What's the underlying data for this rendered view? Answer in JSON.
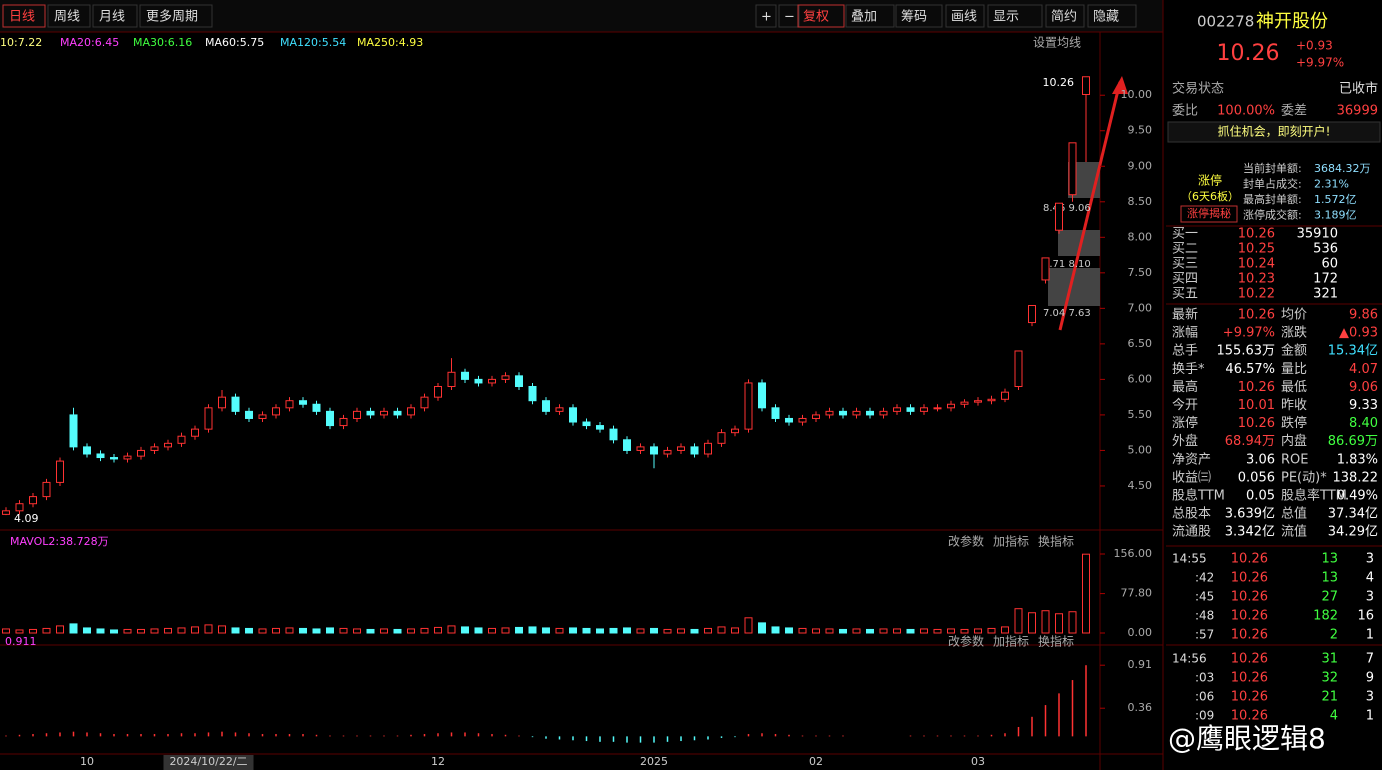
{
  "toolbar": {
    "periods": [
      "日线",
      "周线",
      "月线",
      "更多周期"
    ],
    "tools": [
      "+",
      "−",
      "复权",
      "叠加",
      "筹码",
      "画线",
      "显示",
      "简约",
      "隐藏"
    ]
  },
  "ma_legend": [
    "10:7.22",
    "MA20:6.45",
    "MA30:6.16",
    "MA60:5.75",
    "MA120:5.54",
    "MA250:4.93"
  ],
  "ma_setting": "设置均线",
  "panel_buttons": [
    "改参数",
    "加指标",
    "换指标"
  ],
  "chip_labels": [
    "8.46 9.06",
    "7.71 8.10",
    "7.04 7.63"
  ],
  "chart_data": [
    {
      "type": "candlestick",
      "categories": [
        null,
        null,
        null,
        null,
        null,
        null,
        "10",
        null,
        null,
        null,
        null,
        null,
        null,
        null,
        null,
        "2024/10/22/二",
        null,
        null,
        null,
        null,
        null,
        null,
        null,
        null,
        null,
        null,
        null,
        null,
        null,
        null,
        null,
        null,
        "12",
        null,
        null,
        null,
        null,
        null,
        null,
        null,
        null,
        null,
        null,
        null,
        null,
        null,
        null,
        null,
        "2025",
        null,
        null,
        null,
        null,
        null,
        null,
        null,
        null,
        null,
        null,
        null,
        "02",
        null,
        null,
        null,
        null,
        null,
        null,
        null,
        null,
        null,
        null,
        null,
        "03",
        null,
        null,
        null,
        null,
        null,
        null,
        null,
        null
      ],
      "open": [
        4.1,
        4.15,
        4.25,
        4.35,
        4.55,
        5.5,
        5.05,
        4.95,
        4.9,
        4.88,
        4.92,
        5.0,
        5.05,
        5.1,
        5.2,
        5.3,
        5.6,
        5.75,
        5.55,
        5.45,
        5.5,
        5.6,
        5.7,
        5.65,
        5.55,
        5.35,
        5.45,
        5.55,
        5.5,
        5.55,
        5.5,
        5.6,
        5.75,
        5.9,
        6.1,
        6.0,
        5.95,
        6.0,
        6.05,
        5.9,
        5.7,
        5.55,
        5.6,
        5.4,
        5.35,
        5.3,
        5.15,
        5.0,
        5.05,
        4.95,
        5.0,
        5.05,
        4.95,
        5.1,
        5.25,
        5.3,
        5.95,
        5.6,
        5.45,
        5.4,
        5.45,
        5.5,
        5.55,
        5.5,
        5.55,
        5.5,
        5.55,
        5.6,
        5.55,
        5.6,
        5.6,
        5.65,
        5.68,
        5.7,
        5.72,
        5.9,
        6.8,
        7.4,
        8.1,
        8.6,
        10.01
      ],
      "high": [
        4.2,
        4.3,
        4.4,
        4.6,
        4.9,
        5.6,
        5.1,
        5.0,
        4.95,
        4.97,
        5.05,
        5.1,
        5.15,
        5.25,
        5.35,
        5.65,
        5.85,
        5.8,
        5.6,
        5.55,
        5.65,
        5.75,
        5.75,
        5.7,
        5.6,
        5.5,
        5.6,
        5.6,
        5.6,
        5.6,
        5.65,
        5.8,
        5.95,
        6.3,
        6.15,
        6.05,
        6.05,
        6.1,
        6.1,
        5.95,
        5.75,
        5.65,
        5.65,
        5.45,
        5.4,
        5.35,
        5.2,
        5.1,
        5.1,
        5.05,
        5.1,
        5.1,
        5.15,
        5.3,
        5.35,
        6.0,
        6.0,
        5.65,
        5.5,
        5.5,
        5.55,
        5.6,
        5.6,
        5.6,
        5.6,
        5.6,
        5.65,
        5.65,
        5.65,
        5.65,
        5.7,
        5.72,
        5.75,
        5.77,
        5.87,
        6.4,
        7.04,
        7.71,
        8.48,
        9.33,
        10.26
      ],
      "low": [
        4.09,
        4.1,
        4.2,
        4.3,
        4.5,
        5.0,
        4.9,
        4.85,
        4.83,
        4.83,
        4.87,
        4.95,
        5.0,
        5.05,
        5.15,
        5.25,
        5.55,
        5.5,
        5.4,
        5.4,
        5.45,
        5.55,
        5.6,
        5.5,
        5.3,
        5.3,
        5.4,
        5.45,
        5.45,
        5.45,
        5.45,
        5.55,
        5.7,
        5.85,
        5.95,
        5.9,
        5.9,
        5.95,
        5.85,
        5.65,
        5.5,
        5.5,
        5.35,
        5.3,
        5.25,
        5.1,
        4.95,
        4.95,
        4.75,
        4.9,
        4.95,
        4.9,
        4.9,
        5.05,
        5.2,
        5.25,
        5.55,
        5.4,
        5.35,
        5.35,
        5.4,
        5.45,
        5.45,
        5.45,
        5.45,
        5.45,
        5.5,
        5.5,
        5.5,
        5.55,
        5.55,
        5.6,
        5.63,
        5.65,
        5.68,
        5.85,
        6.75,
        7.35,
        8.05,
        8.5,
        9.06
      ],
      "close": [
        4.15,
        4.25,
        4.35,
        4.55,
        4.85,
        5.05,
        4.95,
        4.9,
        4.88,
        4.92,
        5.0,
        5.05,
        5.1,
        5.2,
        5.3,
        5.6,
        5.75,
        5.55,
        5.45,
        5.5,
        5.6,
        5.7,
        5.65,
        5.55,
        5.35,
        5.45,
        5.55,
        5.5,
        5.55,
        5.5,
        5.6,
        5.75,
        5.9,
        6.1,
        6.0,
        5.95,
        6.0,
        6.05,
        5.9,
        5.7,
        5.55,
        5.6,
        5.4,
        5.35,
        5.3,
        5.15,
        5.0,
        5.05,
        4.95,
        5.0,
        5.05,
        4.95,
        5.1,
        5.25,
        5.3,
        5.95,
        5.6,
        5.45,
        5.4,
        5.45,
        5.5,
        5.55,
        5.5,
        5.55,
        5.5,
        5.55,
        5.6,
        5.55,
        5.6,
        5.6,
        5.65,
        5.68,
        5.7,
        5.72,
        5.82,
        6.4,
        7.04,
        7.71,
        8.48,
        9.33,
        10.26
      ],
      "ylim": [
        3.88,
        10.89
      ],
      "yticks": [
        {
          "value": 4.5,
          "label": "4.50"
        },
        {
          "value": 5,
          "label": "5.00"
        },
        {
          "value": 5.5,
          "label": "5.50"
        },
        {
          "value": 6,
          "label": "6.00"
        },
        {
          "value": 6.5,
          "label": "6.50"
        },
        {
          "value": 7,
          "label": "7.00"
        },
        {
          "value": 7.5,
          "label": "7.50"
        },
        {
          "value": 8,
          "label": "8.00"
        },
        {
          "value": 8.5,
          "label": "8.50"
        },
        {
          "value": 9,
          "label": "9.00"
        },
        {
          "value": 9.5,
          "label": "9.50"
        },
        {
          "value": 10,
          "label": "10.00"
        }
      ],
      "annotations": [
        "10.26",
        "4.09"
      ]
    },
    {
      "type": "bar",
      "title": "MAVOL2:38.728万",
      "values": [
        8,
        6,
        7,
        9,
        14,
        18,
        10,
        8,
        6,
        7,
        7,
        8,
        9,
        10,
        12,
        16,
        14,
        10,
        9,
        8,
        9,
        10,
        9,
        8,
        10,
        9,
        8,
        7,
        8,
        7,
        8,
        9,
        11,
        14,
        12,
        10,
        9,
        10,
        11,
        12,
        10,
        9,
        10,
        9,
        8,
        9,
        10,
        8,
        9,
        7,
        8,
        7,
        9,
        12,
        10,
        30,
        20,
        12,
        10,
        9,
        8,
        8,
        7,
        8,
        7,
        8,
        8,
        7,
        8,
        7,
        8,
        7,
        8,
        9,
        12,
        48,
        40,
        44,
        38,
        42,
        155.63
      ],
      "ylim": [
        0,
        156
      ],
      "yticks": [
        {
          "value": 0,
          "label": "0.00"
        },
        {
          "value": 77.8,
          "label": "77.80"
        },
        {
          "value": 156,
          "label": "156.00"
        }
      ]
    },
    {
      "type": "bar",
      "title": "0.911",
      "values": [
        0.01,
        0.02,
        0.03,
        0.04,
        0.05,
        0.06,
        0.05,
        0.04,
        0.03,
        0.03,
        0.03,
        0.03,
        0.03,
        0.04,
        0.04,
        0.05,
        0.06,
        0.05,
        0.04,
        0.03,
        0.03,
        0.03,
        0.03,
        0.02,
        0.01,
        0.01,
        0.01,
        0.01,
        0.01,
        0.01,
        0.02,
        0.03,
        0.04,
        0.05,
        0.05,
        0.04,
        0.03,
        0.02,
        0.01,
        -0.01,
        -0.03,
        -0.04,
        -0.05,
        -0.06,
        -0.07,
        -0.07,
        -0.08,
        -0.08,
        -0.08,
        -0.07,
        -0.06,
        -0.05,
        -0.04,
        -0.02,
        -0.01,
        0.03,
        0.04,
        0.03,
        0.02,
        0.01,
        0.01,
        0.01,
        0.01,
        0.0,
        0.0,
        0.0,
        0.0,
        0.01,
        0.01,
        0.01,
        0.01,
        0.01,
        0.01,
        0.02,
        0.04,
        0.12,
        0.25,
        0.4,
        0.55,
        0.72,
        0.91
      ],
      "ylim": [
        -0.2,
        1.13
      ],
      "yticks": [
        0.91,
        0.36
      ]
    }
  ],
  "quote": {
    "code": "002278",
    "name": "神开股份",
    "price": "10.26",
    "change": "+0.93",
    "pct": "+9.97%",
    "status": [
      "交易状态",
      "已收市"
    ],
    "ratio": [
      "委比",
      "100.00%",
      "委差",
      "36999"
    ],
    "ad": "抓住机会，即刻开户!",
    "limit": {
      "title": "涨停",
      "sub": "（6天6板）",
      "button": "涨停揭秘",
      "rows": [
        [
          "当前封单额:",
          "3684.32万"
        ],
        [
          "封单占成交:",
          "2.31%"
        ],
        [
          "最高封单额:",
          "1.572亿"
        ],
        [
          "涨停成交额:",
          "3.189亿"
        ]
      ]
    },
    "bids": [
      [
        "买一",
        "10.26",
        "35910"
      ],
      [
        "买二",
        "10.25",
        "536"
      ],
      [
        "买三",
        "10.24",
        "60"
      ],
      [
        "买四",
        "10.23",
        "172"
      ],
      [
        "买五",
        "10.22",
        "321"
      ]
    ],
    "stats": [
      [
        "最新",
        "10.26",
        "均价",
        "9.86"
      ],
      [
        "涨幅",
        "+9.97%",
        "涨跌",
        "▲0.93"
      ],
      [
        "总手",
        "155.63万",
        "金额",
        "15.34亿"
      ],
      [
        "换手*",
        "46.57%",
        "量比",
        "4.07"
      ],
      [
        "最高",
        "10.26",
        "最低",
        "9.06"
      ],
      [
        "今开",
        "10.01",
        "昨收",
        "9.33"
      ],
      [
        "涨停",
        "10.26",
        "跌停",
        "8.40"
      ],
      [
        "外盘",
        "68.94万",
        "内盘",
        "86.69万"
      ],
      [
        "净资产",
        "3.06",
        "ROE",
        "1.83%"
      ],
      [
        "收益㈢",
        "0.056",
        "PE(动)*",
        "138.22"
      ],
      [
        "股息TTM",
        "0.05",
        "股息率TTM",
        "0.49%"
      ],
      [
        "总股本",
        "3.639亿",
        "总值",
        "37.34亿"
      ],
      [
        "流通股",
        "3.342亿",
        "流值",
        "34.29亿"
      ]
    ]
  },
  "trades": [
    [
      "14:55",
      "10.26",
      "13",
      "3"
    ],
    [
      ":42",
      "10.26",
      "13",
      "4"
    ],
    [
      ":45",
      "10.26",
      "27",
      "3"
    ],
    [
      ":48",
      "10.26",
      "182",
      "16"
    ],
    [
      ":57",
      "10.26",
      "2",
      "1"
    ],
    [
      "14:56",
      "10.26",
      "31",
      "7"
    ],
    [
      ":03",
      "10.26",
      "32",
      "9"
    ],
    [
      ":06",
      "10.26",
      "21",
      "3"
    ],
    [
      ":09",
      "10.26",
      "4",
      "1"
    ]
  ],
  "watermark": "@鹰眼逻辑8"
}
